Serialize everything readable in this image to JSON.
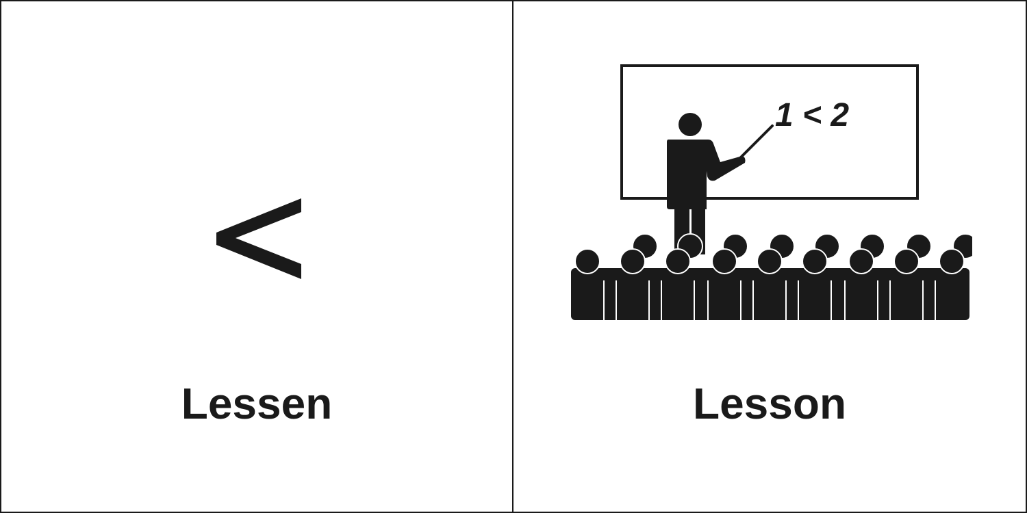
{
  "panels": {
    "left": {
      "symbol": "<",
      "symbol_icon": "less-than-icon",
      "caption": "Lessen"
    },
    "right": {
      "board_text": "1 < 2",
      "illustration_icon": "classroom-teacher-icon",
      "caption": "Lesson"
    }
  },
  "colors": {
    "ink": "#1a1a1a",
    "background": "#ffffff"
  }
}
